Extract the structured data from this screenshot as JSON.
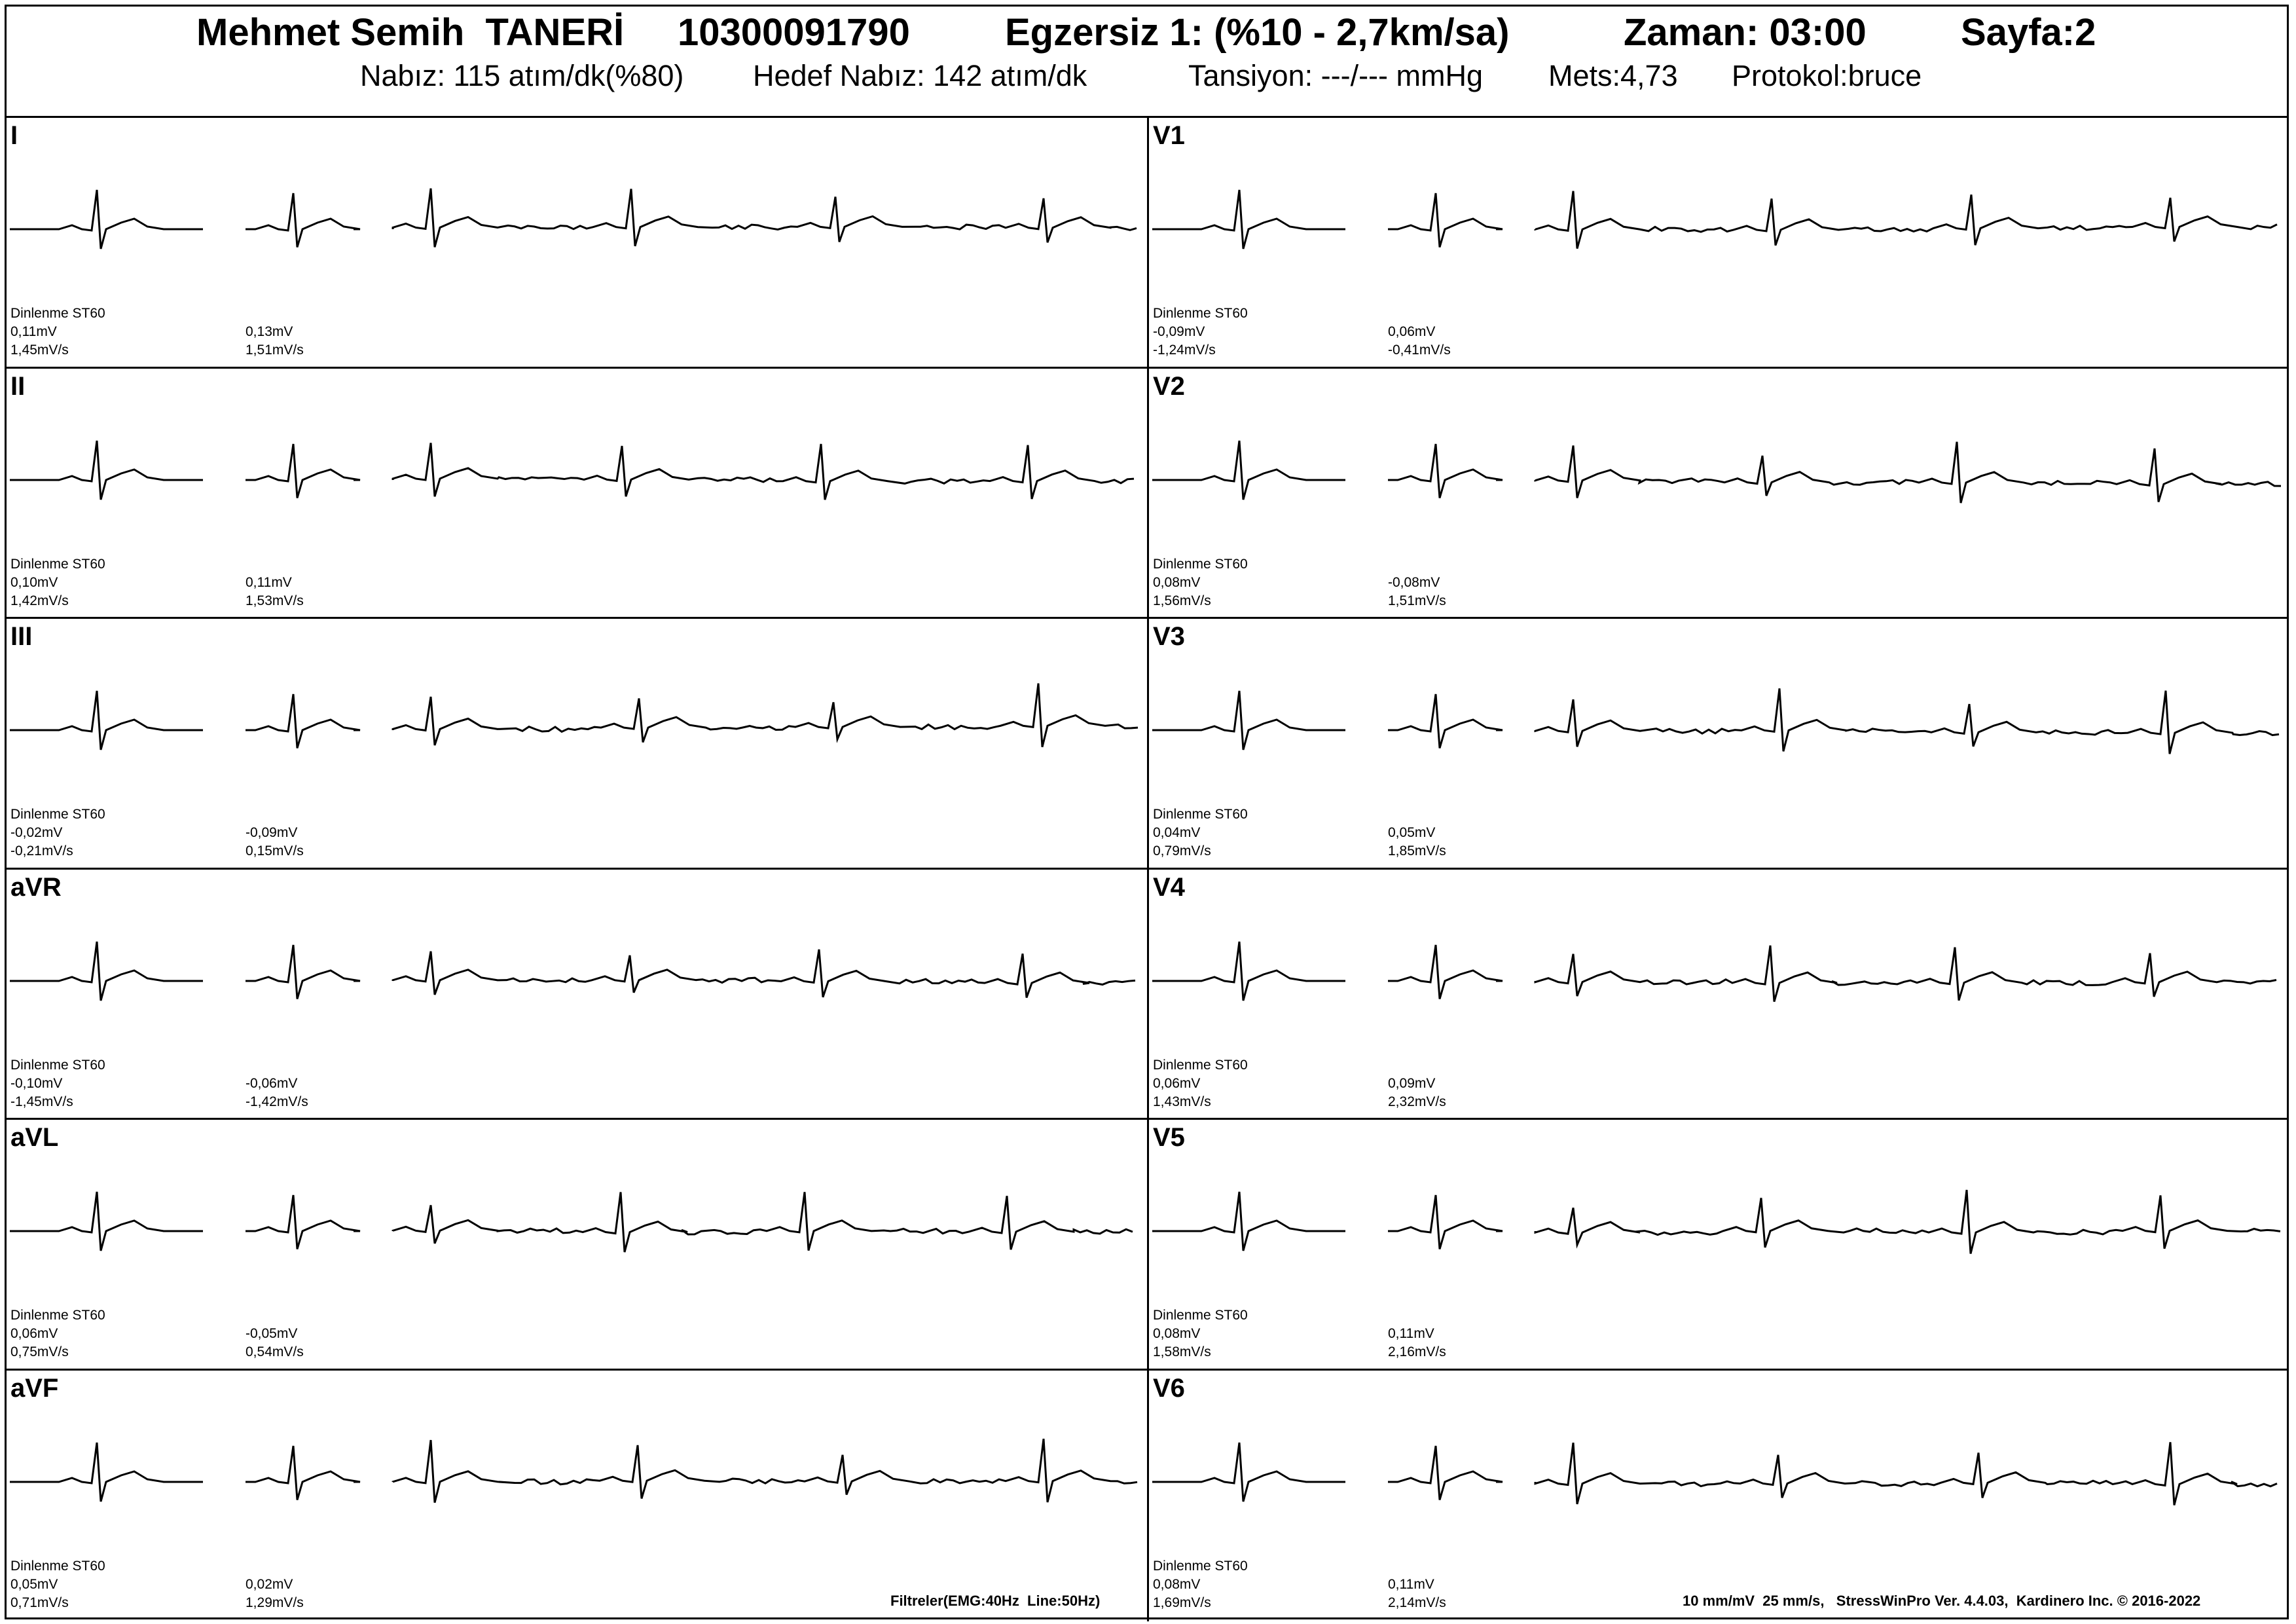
{
  "header": {
    "patient_name": "Mehmet Semih  TANERİ",
    "patient_id": "10300091790",
    "stage": "Egzersiz 1: (%10 - 2,7km/sa)",
    "time": "Zaman: 03:00",
    "page": "Sayfa:2",
    "heart_rate": "Nabız: 115 atım/dk(%80)",
    "target_hr": "Hedef Nabız: 142 atım/dk",
    "bp": "Tansiyon: ---/--- mmHg",
    "mets": "Mets:4,73",
    "protocol": "Protokol:bruce"
  },
  "rest_label": "Dinlenme ST60",
  "leads": [
    {
      "name": "I",
      "rest_st": "0,11mV",
      "rest_slope": "1,45mV/s",
      "cur_st": "0,13mV",
      "cur_slope": "1,51mV/s"
    },
    {
      "name": "II",
      "rest_st": "0,10mV",
      "rest_slope": "1,42mV/s",
      "cur_st": "0,11mV",
      "cur_slope": "1,53mV/s"
    },
    {
      "name": "III",
      "rest_st": "-0,02mV",
      "rest_slope": "-0,21mV/s",
      "cur_st": "-0,09mV",
      "cur_slope": "0,15mV/s"
    },
    {
      "name": "aVR",
      "rest_st": "-0,10mV",
      "rest_slope": "-1,45mV/s",
      "cur_st": "-0,06mV",
      "cur_slope": "-1,42mV/s"
    },
    {
      "name": "aVL",
      "rest_st": "0,06mV",
      "rest_slope": "0,75mV/s",
      "cur_st": "-0,05mV",
      "cur_slope": "0,54mV/s"
    },
    {
      "name": "aVF",
      "rest_st": "0,05mV",
      "rest_slope": "0,71mV/s",
      "cur_st": "0,02mV",
      "cur_slope": "1,29mV/s"
    },
    {
      "name": "V1",
      "rest_st": "-0,09mV",
      "rest_slope": "-1,24mV/s",
      "cur_st": "0,06mV",
      "cur_slope": "-0,41mV/s"
    },
    {
      "name": "V2",
      "rest_st": "0,08mV",
      "rest_slope": "1,56mV/s",
      "cur_st": "-0,08mV",
      "cur_slope": "1,51mV/s"
    },
    {
      "name": "V3",
      "rest_st": "0,04mV",
      "rest_slope": "0,79mV/s",
      "cur_st": "0,05mV",
      "cur_slope": "1,85mV/s"
    },
    {
      "name": "V4",
      "rest_st": "0,06mV",
      "rest_slope": "1,43mV/s",
      "cur_st": "0,09mV",
      "cur_slope": "2,32mV/s"
    },
    {
      "name": "V5",
      "rest_st": "0,08mV",
      "rest_slope": "1,58mV/s",
      "cur_st": "0,11mV",
      "cur_slope": "2,16mV/s"
    },
    {
      "name": "V6",
      "rest_st": "0,08mV",
      "rest_slope": "1,69mV/s",
      "cur_st": "0,11mV",
      "cur_slope": "2,14mV/s"
    }
  ],
  "footer": {
    "filters": "Filtreler(EMG:40Hz  Line:50Hz)",
    "scale_info": "10 mm/mV  25 mm/s,   StressWinPro Ver. 4.4.03,  Kardinero Inc. © 2016-2022"
  }
}
